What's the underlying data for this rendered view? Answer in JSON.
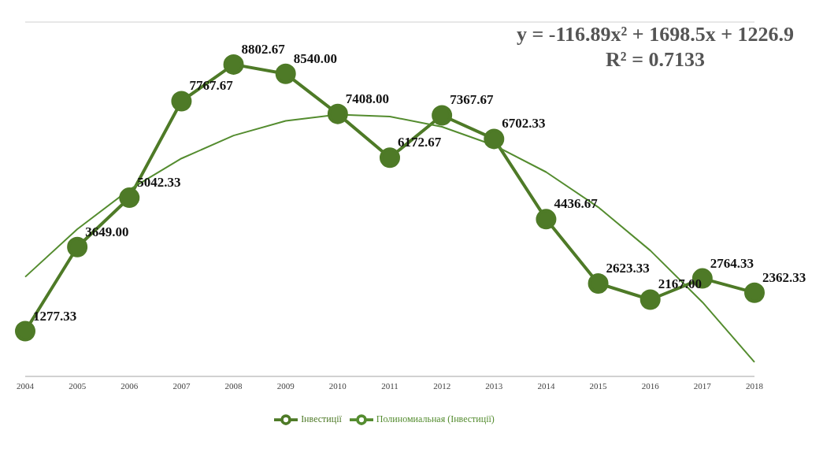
{
  "chart_data": {
    "type": "line",
    "categories": [
      "2004",
      "2005",
      "2006",
      "2007",
      "2008",
      "2009",
      "2010",
      "2011",
      "2012",
      "2013",
      "2014",
      "2015",
      "2016",
      "2017",
      "2018"
    ],
    "series": [
      {
        "name": "Інвестиції",
        "color": "#4e7a27",
        "marker": "circle",
        "values": [
          1277.33,
          3649.0,
          5042.33,
          7767.67,
          8802.67,
          8540.0,
          7408.0,
          6172.67,
          7367.67,
          6702.33,
          4436.67,
          2623.33,
          2167.0,
          2764.33,
          2362.33
        ],
        "value_labels": [
          "1277.33",
          "3649.00",
          "5042.33",
          "7767.67",
          "8802.67",
          "8540.00",
          "7408.00",
          "6172.67",
          "7367.67",
          "6702.33",
          "4436.67",
          "2623.33",
          "2167.00",
          "2764.33",
          "2362.33"
        ]
      },
      {
        "name": "Полиномиальная (Інвестиції)",
        "color": "#548c2f",
        "marker": "none",
        "values": [
          2808.51,
          4156.34,
          5270.39,
          6150.66,
          6797.15,
          7209.86,
          7388.79,
          7333.94,
          7045.31,
          6522.9,
          5766.71,
          4776.74,
          3552.99,
          2095.46,
          404.15
        ]
      }
    ],
    "ylim": [
      0,
      10000
    ],
    "tick_labels": "x",
    "grid": "y",
    "legend": "bottom",
    "annotations": [
      "y = -116.89x² + 1698.5x + 1226.9",
      "R² = 0.7133"
    ]
  }
}
